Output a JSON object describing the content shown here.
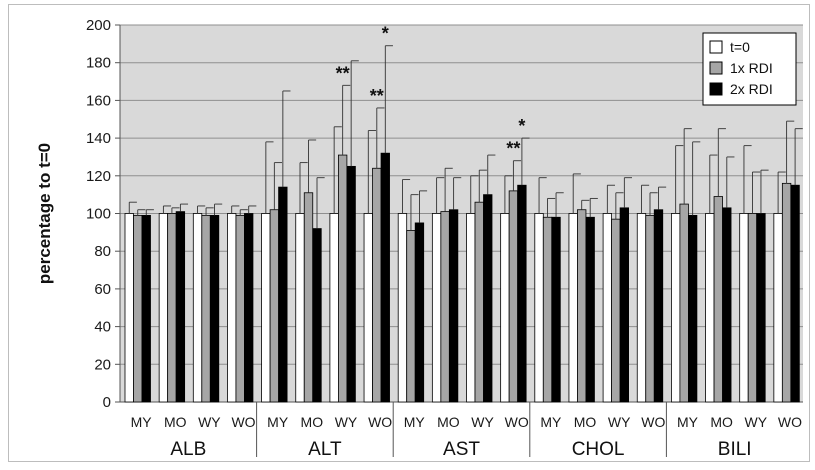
{
  "chart_data": {
    "type": "bar",
    "ylabel": "percentage to t=0",
    "ylim": [
      0,
      200
    ],
    "yticks": [
      0,
      20,
      40,
      60,
      80,
      100,
      120,
      140,
      160,
      180,
      200
    ],
    "grid": true,
    "legend_position": "top-right",
    "series": [
      {
        "name": "t=0",
        "color": "#ffffff"
      },
      {
        "name": "1x RDI",
        "color": "#a6a6a6"
      },
      {
        "name": "2x RDI",
        "color": "#000000"
      }
    ],
    "groups": [
      {
        "label": "ALB",
        "subgroups": [
          {
            "label": "MY",
            "values": [
              100,
              99,
              99
            ],
            "errors": [
              6,
              3,
              3
            ]
          },
          {
            "label": "MO",
            "values": [
              100,
              100,
              101
            ],
            "errors": [
              4,
              3,
              4
            ]
          },
          {
            "label": "WY",
            "values": [
              100,
              99,
              99
            ],
            "errors": [
              4,
              4,
              6
            ]
          },
          {
            "label": "WO",
            "values": [
              100,
              99,
              100
            ],
            "errors": [
              4,
              3,
              4
            ]
          }
        ]
      },
      {
        "label": "ALT",
        "subgroups": [
          {
            "label": "MY",
            "values": [
              100,
              102,
              114
            ],
            "errors": [
              38,
              25,
              51
            ]
          },
          {
            "label": "MO",
            "values": [
              100,
              111,
              92
            ],
            "errors": [
              27,
              28,
              27
            ]
          },
          {
            "label": "WY",
            "values": [
              100,
              131,
              125
            ],
            "errors": [
              46,
              37,
              56
            ]
          },
          {
            "label": "WO",
            "values": [
              100,
              124,
              132
            ],
            "errors": [
              44,
              32,
              57
            ]
          }
        ]
      },
      {
        "label": "AST",
        "subgroups": [
          {
            "label": "MY",
            "values": [
              100,
              91,
              95
            ],
            "errors": [
              18,
              19,
              17
            ]
          },
          {
            "label": "MO",
            "values": [
              100,
              101,
              102
            ],
            "errors": [
              19,
              23,
              17
            ]
          },
          {
            "label": "WY",
            "values": [
              100,
              106,
              110
            ],
            "errors": [
              20,
              17,
              21
            ]
          },
          {
            "label": "WO",
            "values": [
              100,
              112,
              115
            ],
            "errors": [
              20,
              16,
              25
            ]
          }
        ]
      },
      {
        "label": "CHOL",
        "subgroups": [
          {
            "label": "MY",
            "values": [
              100,
              98,
              98
            ],
            "errors": [
              19,
              10,
              13
            ]
          },
          {
            "label": "MO",
            "values": [
              100,
              102,
              98
            ],
            "errors": [
              21,
              5,
              10
            ]
          },
          {
            "label": "WY",
            "values": [
              100,
              97,
              103
            ],
            "errors": [
              15,
              14,
              16
            ]
          },
          {
            "label": "WO",
            "values": [
              100,
              99,
              102
            ],
            "errors": [
              15,
              12,
              12
            ]
          }
        ]
      },
      {
        "label": "BILI",
        "subgroups": [
          {
            "label": "MY",
            "values": [
              100,
              105,
              99
            ],
            "errors": [
              36,
              40,
              39
            ]
          },
          {
            "label": "MO",
            "values": [
              100,
              109,
              103
            ],
            "errors": [
              31,
              36,
              27
            ]
          },
          {
            "label": "WY",
            "values": [
              100,
              100,
              100
            ],
            "errors": [
              36,
              22,
              23
            ]
          },
          {
            "label": "WO",
            "values": [
              100,
              116,
              115
            ],
            "errors": [
              22,
              33,
              30
            ]
          }
        ]
      }
    ],
    "annotations": [
      {
        "text": "**",
        "group": "ALT",
        "subgroup": "WY",
        "series": "1x RDI"
      },
      {
        "text": "**",
        "group": "ALT",
        "subgroup": "WO",
        "series": "1x RDI"
      },
      {
        "text": "*",
        "group": "ALT",
        "subgroup": "WO",
        "series": "2x RDI"
      },
      {
        "text": "**",
        "group": "AST",
        "subgroup": "WO",
        "series": "1x RDI"
      },
      {
        "text": "*",
        "group": "AST",
        "subgroup": "WO",
        "series": "2x RDI"
      }
    ]
  }
}
